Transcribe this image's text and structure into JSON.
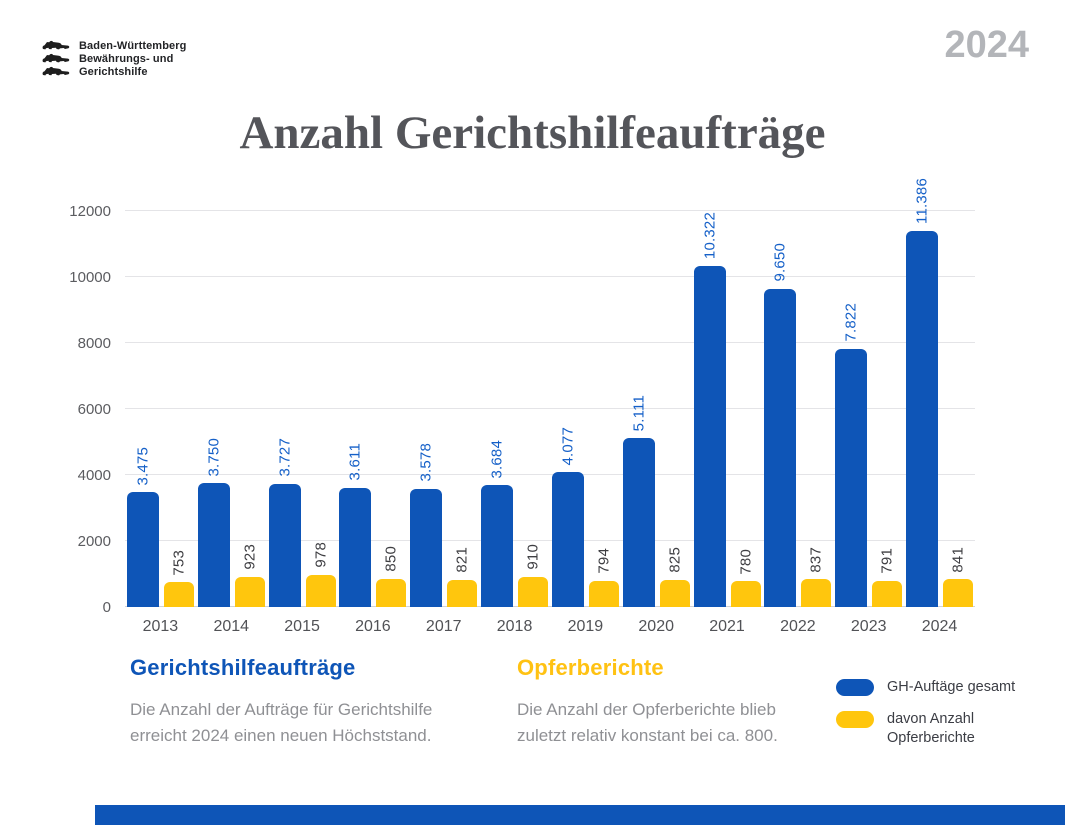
{
  "meta": {
    "org_line1": "Baden-Württemberg",
    "org_line2": "Bewährungs- und",
    "org_line3": "Gerichtshilfe",
    "year_badge": "2024"
  },
  "title": "Anzahl Gerichtshilfeaufträge",
  "chart_data": {
    "type": "bar",
    "title": "Anzahl Gerichtshilfeaufträge",
    "categories": [
      "2013",
      "2014",
      "2015",
      "2016",
      "2017",
      "2018",
      "2019",
      "2020",
      "2021",
      "2022",
      "2023",
      "2024"
    ],
    "series": [
      {
        "name": "GH-Auftäge gesamt",
        "color": "#0e55b7",
        "values": [
          3475,
          3750,
          3727,
          3611,
          3578,
          3684,
          4077,
          5111,
          10322,
          9650,
          7822,
          11386
        ],
        "labels": [
          "3.475",
          "3.750",
          "3.727",
          "3.611",
          "3.578",
          "3.684",
          "4.077",
          "5.111",
          "10.322",
          "9.650",
          "7.822",
          "11.386"
        ]
      },
      {
        "name": "davon Anzahl Opferberichte",
        "color": "#ffc60d",
        "values": [
          753,
          923,
          978,
          850,
          821,
          910,
          794,
          825,
          780,
          837,
          791,
          841
        ],
        "labels": [
          "753",
          "923",
          "978",
          "850",
          "821",
          "910",
          "794",
          "825",
          "780",
          "837",
          "791",
          "841"
        ]
      }
    ],
    "ylim": [
      0,
      12000
    ],
    "yticks": [
      0,
      2000,
      4000,
      6000,
      8000,
      10000,
      12000
    ],
    "grid": true,
    "legend_position": "bottom-right"
  },
  "legend": {
    "items": [
      {
        "lines": [
          "GH-Auftäge gesamt"
        ],
        "color": "#0e55b7"
      },
      {
        "lines": [
          "davon Anzahl",
          "Opferberichte"
        ],
        "color": "#ffc60d"
      }
    ]
  },
  "notes": {
    "left": {
      "heading": "Gerichtshilfeaufträge",
      "body": "Die Anzahl der Aufträge für Gerichtshilfe erreicht 2024 einen neuen Höchststand."
    },
    "right": {
      "heading": "Opferberichte",
      "body": "Die Anzahl der Opferberichte blieb zuletzt relativ konstant bei ca. 800."
    }
  },
  "colors": {
    "blue": "#0e55b7",
    "yellow": "#ffc60d",
    "title_gray": "#54555a",
    "body_gray": "#8f9094",
    "badge_gray": "#b3b5b9"
  }
}
